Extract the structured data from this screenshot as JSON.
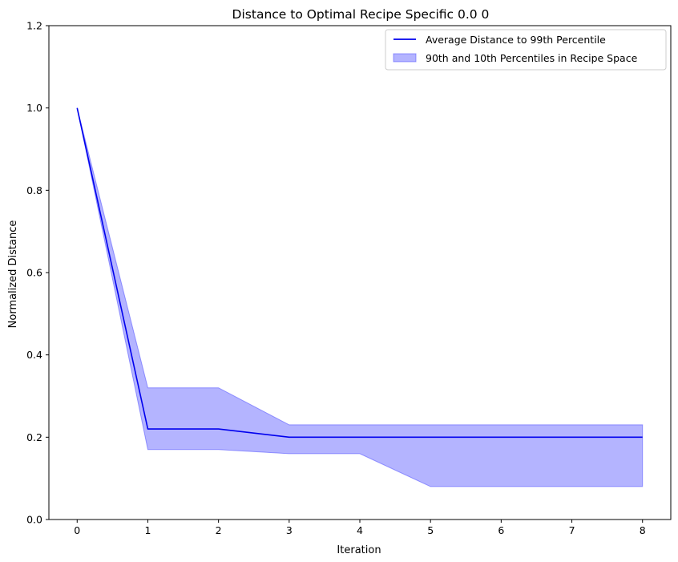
{
  "chart_data": {
    "type": "line",
    "title": "Distance to Optimal Recipe Specific 0.0 0",
    "xlabel": "Iteration",
    "ylabel": "Normalized Distance",
    "xlim": [
      -0.4,
      8.4
    ],
    "ylim": [
      0.0,
      1.2
    ],
    "x_ticks": [
      0,
      1,
      2,
      3,
      4,
      5,
      6,
      7,
      8
    ],
    "y_ticks": [
      0.0,
      0.2,
      0.4,
      0.6,
      0.8,
      1.0,
      1.2
    ],
    "y_tick_labels": [
      "0.0",
      "0.2",
      "0.4",
      "0.6",
      "0.8",
      "1.0",
      "1.2"
    ],
    "grid": false,
    "legend_position": "top-right",
    "x": [
      0,
      1,
      2,
      3,
      4,
      5,
      6,
      7,
      8
    ],
    "series": [
      {
        "name": "Average Distance to 99th Percentile",
        "kind": "line",
        "color": "#0000ee",
        "values": [
          1.0,
          0.22,
          0.22,
          0.2,
          0.2,
          0.2,
          0.2,
          0.2,
          0.2
        ]
      }
    ],
    "band": {
      "name": "90th and 10th Percentiles in Recipe Space",
      "kind": "fill_between",
      "color": "#4444ff",
      "upper": [
        1.0,
        0.32,
        0.32,
        0.23,
        0.23,
        0.23,
        0.23,
        0.23,
        0.23
      ],
      "lower": [
        1.0,
        0.17,
        0.17,
        0.16,
        0.16,
        0.08,
        0.08,
        0.08,
        0.08
      ]
    }
  }
}
